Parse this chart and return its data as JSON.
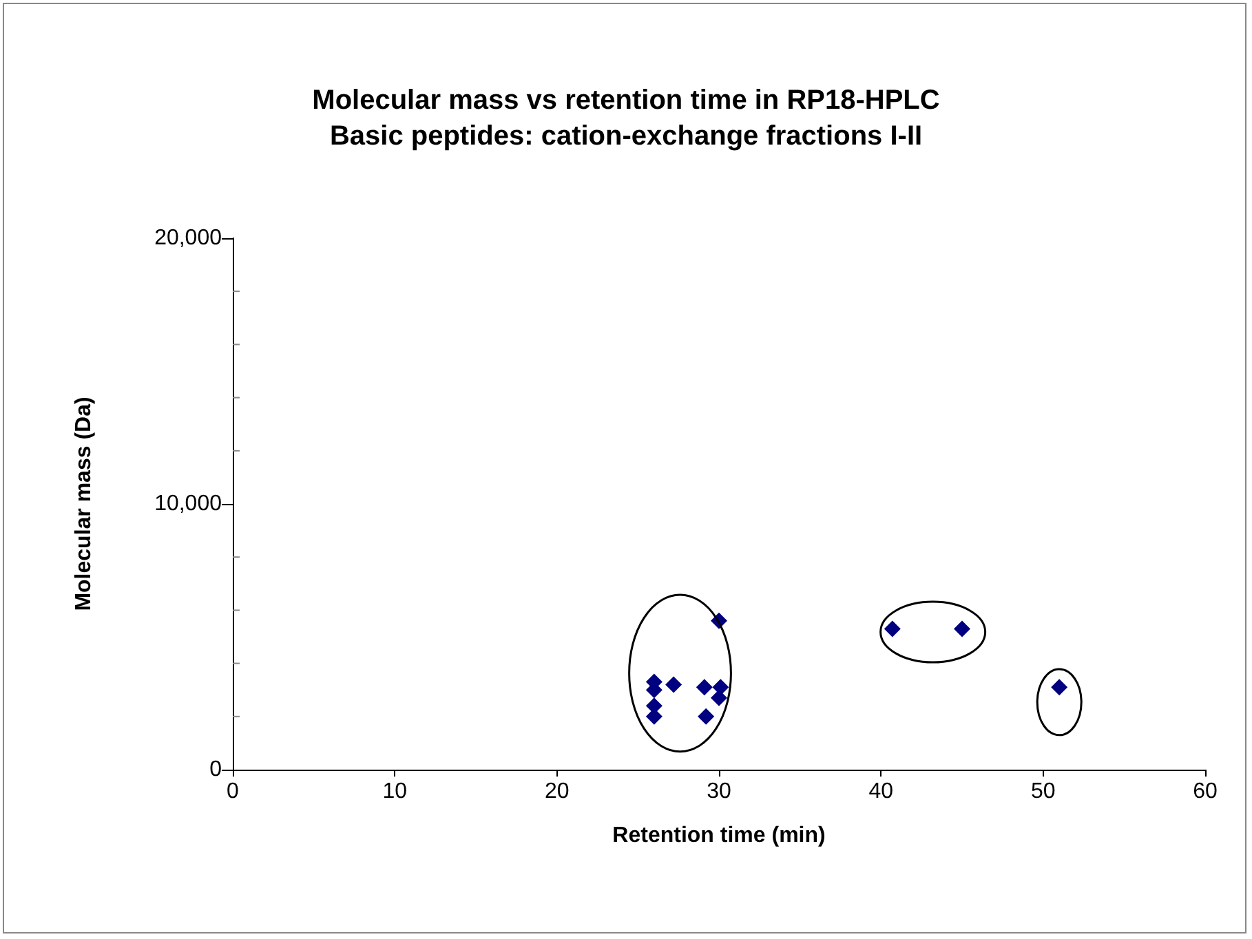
{
  "chart_data": {
    "type": "scatter",
    "title": "Molecular mass vs retention time in RP18-HPLC",
    "subtitle": "Basic peptides: cation-exchange fractions I-II",
    "xlabel": "Retention time (min)",
    "ylabel": "Molecular mass (Da)",
    "series": [
      {
        "color": "#000080",
        "x": [
          30,
          26,
          26,
          27.2,
          29.1,
          30.1,
          30,
          26,
          26,
          29.2,
          40.7,
          45,
          51
        ],
        "values": [
          5600,
          3300,
          3000,
          3200,
          3100,
          3100,
          2700,
          2400,
          2000,
          2000,
          5300,
          5300,
          3100
        ]
      }
    ],
    "xlim": [
      0,
      60
    ],
    "xticks": [
      0,
      10,
      20,
      30,
      40,
      50,
      60
    ],
    "ylim": [
      0,
      20000
    ],
    "yticks": [
      {
        "value": 0,
        "label": "0"
      },
      {
        "value": 10000,
        "label": "10,000"
      },
      {
        "value": 20000,
        "label": "20,000"
      }
    ],
    "grid": false,
    "marker": "diamond"
  }
}
